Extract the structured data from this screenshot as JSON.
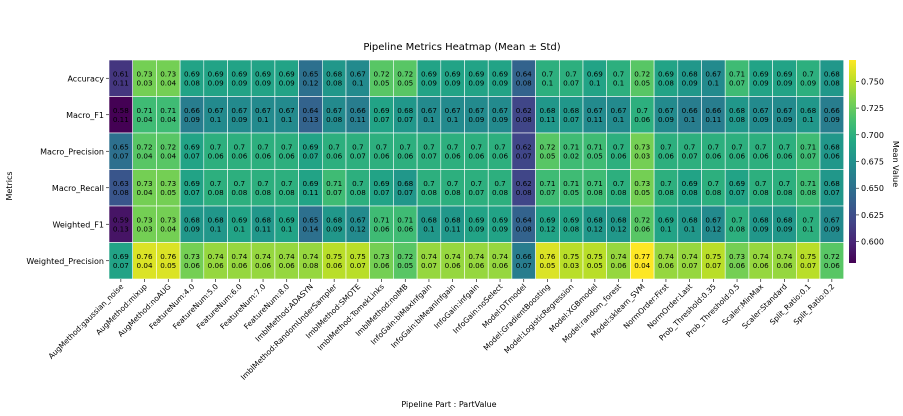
{
  "chart_data": {
    "type": "heatmap",
    "title": "Pipeline Metrics Heatmap (Mean ± Std)",
    "xlabel": "Pipeline Part : PartValue",
    "ylabel": "Metrics",
    "colorbar_label": "Mean Value",
    "colormap": "viridis",
    "vmin": 0.58,
    "vmax": 0.77,
    "colorbar_ticks": [
      "0.600",
      "0.625",
      "0.650",
      "0.675",
      "0.700",
      "0.725",
      "0.750"
    ],
    "rows": [
      "Accuracy",
      "Macro_F1",
      "Macro_Precision",
      "Macro_Recall",
      "Weighted_F1",
      "Weighted_Precision"
    ],
    "columns": [
      "AugMethod:gaussian_noise",
      "AugMethod:mixup",
      "AugMethod:noAUG",
      "FeatureNum:4.0",
      "FeatureNum:5.0",
      "FeatureNum:6.0",
      "FeatureNum:7.0",
      "FeatureNum:8.0",
      "ImblMethod:ADASYN",
      "ImblMethod:RandomUnderSampler",
      "ImblMethod:SMOTE",
      "ImblMethod:TomekLinks",
      "ImblMethod:noIMB",
      "InfoGain:biMaxInfgain",
      "InfoGain:biMeanInfgain",
      "InfoGain:infgain",
      "InfoGain:noSelect",
      "Model:DTmodel",
      "Model:GradientBoosting",
      "Model:LogisticRegression",
      "Model:XGBmodel",
      "Model:random_forest",
      "Model:sklearn_SVM",
      "NormOrder:First",
      "NormOrder:Last",
      "Prob_Threshold:0.35",
      "Prob_Threshold:0.5",
      "Scaler:MinMax",
      "Scaler:Standard",
      "Split_Ratio:0.1",
      "Split_Ratio:0.2"
    ],
    "mean_labels": [
      [
        "0.61",
        "0.73",
        "0.73",
        "0.69",
        "0.69",
        "0.69",
        "0.69",
        "0.69",
        "0.65",
        "0.68",
        "0.67",
        "0.72",
        "0.72",
        "0.69",
        "0.69",
        "0.69",
        "0.69",
        "0.64",
        "0.7",
        "0.7",
        "0.69",
        "0.7",
        "0.72",
        "0.69",
        "0.68",
        "0.67",
        "0.71",
        "0.69",
        "0.69",
        "0.7",
        "0.68"
      ],
      [
        "0.58",
        "0.71",
        "0.71",
        "0.66",
        "0.67",
        "0.67",
        "0.67",
        "0.67",
        "0.64",
        "0.67",
        "0.66",
        "0.69",
        "0.68",
        "0.67",
        "0.67",
        "0.67",
        "0.67",
        "0.62",
        "0.68",
        "0.68",
        "0.67",
        "0.67",
        "0.7",
        "0.67",
        "0.66",
        "0.66",
        "0.68",
        "0.67",
        "0.67",
        "0.68",
        "0.66"
      ],
      [
        "0.65",
        "0.72",
        "0.72",
        "0.69",
        "0.7",
        "0.7",
        "0.7",
        "0.7",
        "0.69",
        "0.7",
        "0.7",
        "0.7",
        "0.7",
        "0.7",
        "0.7",
        "0.7",
        "0.7",
        "0.62",
        "0.72",
        "0.71",
        "0.71",
        "0.7",
        "0.73",
        "0.7",
        "0.7",
        "0.7",
        "0.7",
        "0.7",
        "0.7",
        "0.71",
        "0.68"
      ],
      [
        "0.63",
        "0.73",
        "0.73",
        "0.69",
        "0.7",
        "0.7",
        "0.7",
        "0.7",
        "0.69",
        "0.71",
        "0.7",
        "0.69",
        "0.68",
        "0.7",
        "0.7",
        "0.7",
        "0.7",
        "0.62",
        "0.71",
        "0.71",
        "0.71",
        "0.7",
        "0.73",
        "0.7",
        "0.69",
        "0.7",
        "0.69",
        "0.7",
        "0.7",
        "0.71",
        "0.68"
      ],
      [
        "0.59",
        "0.73",
        "0.73",
        "0.68",
        "0.68",
        "0.69",
        "0.68",
        "0.69",
        "0.65",
        "0.68",
        "0.67",
        "0.71",
        "0.71",
        "0.68",
        "0.68",
        "0.69",
        "0.69",
        "0.64",
        "0.69",
        "0.69",
        "0.68",
        "0.68",
        "0.72",
        "0.69",
        "0.68",
        "0.67",
        "0.7",
        "0.68",
        "0.68",
        "0.7",
        "0.67"
      ],
      [
        "0.69",
        "0.76",
        "0.76",
        "0.73",
        "0.74",
        "0.74",
        "0.74",
        "0.74",
        "0.74",
        "0.75",
        "0.75",
        "0.73",
        "0.72",
        "0.74",
        "0.74",
        "0.74",
        "0.74",
        "0.66",
        "0.76",
        "0.75",
        "0.75",
        "0.74",
        "0.77",
        "0.74",
        "0.74",
        "0.75",
        "0.73",
        "0.74",
        "0.74",
        "0.75",
        "0.72"
      ]
    ],
    "std_labels": [
      [
        "0.11",
        "0.03",
        "0.04",
        "0.08",
        "0.09",
        "0.09",
        "0.09",
        "0.09",
        "0.12",
        "0.08",
        "0.1",
        "0.05",
        "0.05",
        "0.09",
        "0.09",
        "0.09",
        "0.09",
        "0.08",
        "0.1",
        "0.07",
        "0.1",
        "0.1",
        "0.05",
        "0.08",
        "0.09",
        "0.1",
        "0.07",
        "0.09",
        "0.09",
        "0.09",
        "0.08"
      ],
      [
        "0.11",
        "0.04",
        "0.04",
        "0.09",
        "0.1",
        "0.09",
        "0.1",
        "0.1",
        "0.13",
        "0.08",
        "0.11",
        "0.07",
        "0.07",
        "0.1",
        "0.1",
        "0.09",
        "0.09",
        "0.08",
        "0.11",
        "0.07",
        "0.11",
        "0.1",
        "0.06",
        "0.09",
        "0.1",
        "0.11",
        "0.08",
        "0.09",
        "0.09",
        "0.1",
        "0.09"
      ],
      [
        "0.07",
        "0.04",
        "0.04",
        "0.07",
        "0.06",
        "0.06",
        "0.06",
        "0.06",
        "0.07",
        "0.06",
        "0.07",
        "0.06",
        "0.06",
        "0.07",
        "0.06",
        "0.06",
        "0.06",
        "0.07",
        "0.05",
        "0.02",
        "0.05",
        "0.06",
        "0.03",
        "0.06",
        "0.07",
        "0.06",
        "0.06",
        "0.06",
        "0.06",
        "0.07",
        "0.06"
      ],
      [
        "0.08",
        "0.04",
        "0.05",
        "0.07",
        "0.08",
        "0.08",
        "0.08",
        "0.08",
        "0.11",
        "0.07",
        "0.08",
        "0.07",
        "0.07",
        "0.08",
        "0.08",
        "0.07",
        "0.08",
        "0.08",
        "0.07",
        "0.05",
        "0.08",
        "0.08",
        "0.05",
        "0.08",
        "0.08",
        "0.08",
        "0.07",
        "0.08",
        "0.08",
        "0.08",
        "0.07"
      ],
      [
        "0.13",
        "0.03",
        "0.04",
        "0.09",
        "0.1",
        "0.1",
        "0.11",
        "0.1",
        "0.14",
        "0.09",
        "0.12",
        "0.06",
        "0.06",
        "0.1",
        "0.11",
        "0.09",
        "0.09",
        "0.08",
        "0.12",
        "0.08",
        "0.12",
        "0.12",
        "0.06",
        "0.1",
        "0.1",
        "0.12",
        "0.08",
        "0.09",
        "0.09",
        "0.1",
        "0.09"
      ],
      [
        "0.07",
        "0.04",
        "0.05",
        "0.06",
        "0.06",
        "0.06",
        "0.06",
        "0.06",
        "0.08",
        "0.06",
        "0.07",
        "0.06",
        "0.05",
        "0.07",
        "0.06",
        "0.06",
        "0.06",
        "0.07",
        "0.05",
        "0.03",
        "0.05",
        "0.06",
        "0.04",
        "0.06",
        "0.07",
        "0.07",
        "0.06",
        "0.06",
        "0.06",
        "0.07",
        "0.06"
      ]
    ]
  }
}
